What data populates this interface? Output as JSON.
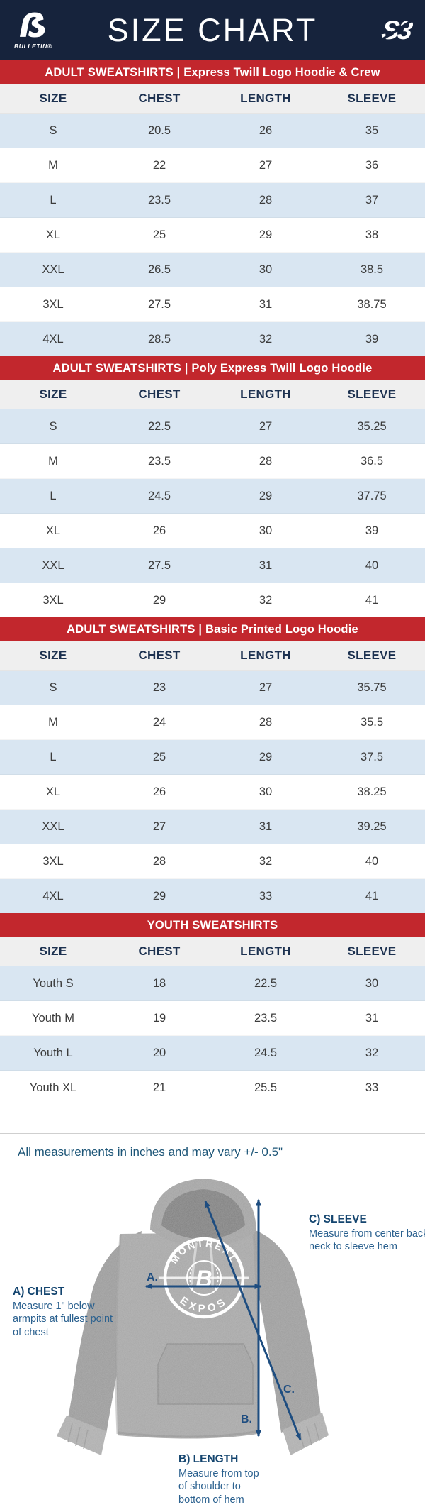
{
  "header": {
    "title": "SIZE CHART",
    "left_logo": {
      "glyph": "ẞ",
      "brand": "BULLETIN®"
    },
    "right_logo": {
      "glyph": "S3"
    }
  },
  "note": "All measurements in inches and may vary +/- 0.5\"",
  "chart_data": [
    {
      "type": "table",
      "title": "ADULT SWEATSHIRTS | Express Twill Logo Hoodie & Crew",
      "columns": [
        "SIZE",
        "CHEST",
        "LENGTH",
        "SLEEVE"
      ],
      "units": "inches",
      "rows": [
        [
          "S",
          20.5,
          26,
          35
        ],
        [
          "M",
          22,
          27,
          36
        ],
        [
          "L",
          23.5,
          28,
          37
        ],
        [
          "XL",
          25,
          29,
          38
        ],
        [
          "XXL",
          26.5,
          30,
          38.5
        ],
        [
          "3XL",
          27.5,
          31,
          38.75
        ],
        [
          "4XL",
          28.5,
          32,
          39
        ]
      ]
    },
    {
      "type": "table",
      "title": "ADULT SWEATSHIRTS | Poly Express Twill Logo Hoodie",
      "columns": [
        "SIZE",
        "CHEST",
        "LENGTH",
        "SLEEVE"
      ],
      "units": "inches",
      "rows": [
        [
          "S",
          22.5,
          27,
          35.25
        ],
        [
          "M",
          23.5,
          28,
          36.5
        ],
        [
          "L",
          24.5,
          29,
          37.75
        ],
        [
          "XL",
          26,
          30,
          39
        ],
        [
          "XXL",
          27.5,
          31,
          40
        ],
        [
          "3XL",
          29,
          32,
          41
        ]
      ]
    },
    {
      "type": "table",
      "title": "ADULT SWEATSHIRTS | Basic Printed Logo Hoodie",
      "columns": [
        "SIZE",
        "CHEST",
        "LENGTH",
        "SLEEVE"
      ],
      "units": "inches",
      "rows": [
        [
          "S",
          23,
          27,
          35.75
        ],
        [
          "M",
          24,
          28,
          35.5
        ],
        [
          "L",
          25,
          29,
          37.5
        ],
        [
          "XL",
          26,
          30,
          38.25
        ],
        [
          "XXL",
          27,
          31,
          39.25
        ],
        [
          "3XL",
          28,
          32,
          40
        ],
        [
          "4XL",
          29,
          33,
          41
        ]
      ]
    },
    {
      "type": "table",
      "title": "YOUTH SWEATSHIRTS",
      "columns": [
        "SIZE",
        "CHEST",
        "LENGTH",
        "SLEEVE"
      ],
      "units": "inches",
      "rows": [
        [
          "Youth S",
          18,
          22.5,
          30
        ],
        [
          "Youth M",
          19,
          23.5,
          31
        ],
        [
          "Youth L",
          20,
          24.5,
          32
        ],
        [
          "Youth XL",
          21,
          25.5,
          33
        ]
      ]
    }
  ],
  "diagram": {
    "logo": {
      "top_text": "MONTRÉAL",
      "bottom_text": "EXPOS",
      "center_glyph": "B"
    },
    "arrow_labels": {
      "chest": "A.",
      "length": "B.",
      "sleeve": "C."
    },
    "annotations": {
      "chest": {
        "title": "A) CHEST",
        "body": "Measure 1\" below armpits at fullest point of chest"
      },
      "length": {
        "title": "B) LENGTH",
        "body": "Measure from top of shoulder to bottom of hem"
      },
      "sleeve": {
        "title": "C) SLEEVE",
        "body": "Measure from center back neck to sleeve hem"
      }
    }
  },
  "colors": {
    "navy": "#16233C",
    "banner_red": "#C2272D",
    "row_blue": "#D9E6F2",
    "header_gray": "#EFEFEF",
    "text_navy": "#1C3150",
    "annotation_blue": "#2B618F",
    "arrow_blue": "#1E4D80",
    "hoodie_gray": "#A2A2A2"
  }
}
